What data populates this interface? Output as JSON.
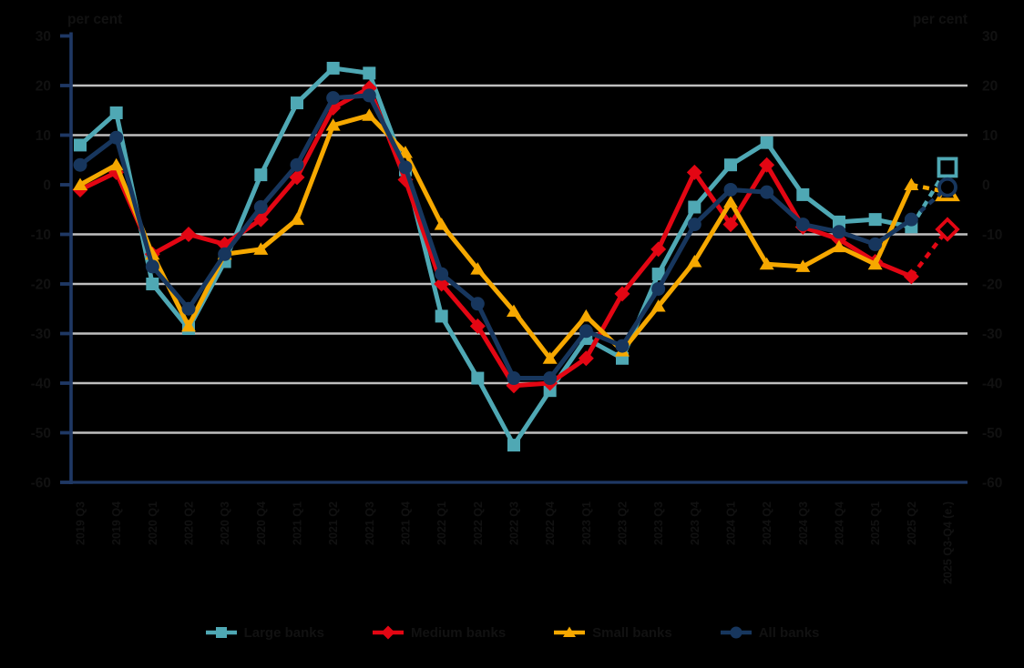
{
  "page": {
    "background": "#000000",
    "text_color": "#111111"
  },
  "chart_data": {
    "type": "line",
    "title": "",
    "axis_title_left": "per cent",
    "axis_title_right": "per cent",
    "ylim": [
      -60,
      30
    ],
    "yticks": [
      30,
      20,
      10,
      0,
      -10,
      -20,
      -30,
      -40,
      -50,
      -60
    ],
    "gridlines_at": [
      20,
      10,
      -10,
      -20,
      -30,
      -40,
      -50
    ],
    "grid_on": true,
    "grid_color": "#BFBFBF",
    "axis_color": "#1F3864",
    "legend_position": "bottom-center",
    "last_category_estimated": true,
    "categories": [
      "2019 Q3",
      "2019 Q4",
      "2020 Q1",
      "2020 Q2",
      "2020 Q3",
      "2020 Q4",
      "2021 Q1",
      "2021 Q2",
      "2021 Q3",
      "2021 Q4",
      "2022 Q1",
      "2022 Q2",
      "2022 Q3",
      "2022 Q4",
      "2023 Q1",
      "2023 Q2",
      "2023 Q3",
      "2023 Q4",
      "2024 Q1",
      "2024 Q2",
      "2024 Q3",
      "2024 Q4",
      "2025 Q1",
      "2025 Q2",
      "2025 Q3-Q4 (e.)"
    ],
    "series": [
      {
        "name": "Large banks",
        "marker": "square",
        "color": "#4FA8B4",
        "values": [
          8,
          14.5,
          -20,
          -29,
          -15.5,
          2,
          16.5,
          23.5,
          22.5,
          3,
          -26.5,
          -39,
          -52.5,
          -41.5,
          -31,
          -35,
          -18,
          -4.5,
          4,
          8.5,
          -2,
          -7.5,
          -7,
          -8.5,
          3.5
        ]
      },
      {
        "name": "Medium banks",
        "marker": "diamond",
        "color": "#E30613",
        "values": [
          -1,
          2.5,
          -14,
          -10,
          -12,
          -7,
          1.5,
          15.5,
          19.5,
          1,
          -20,
          -28.5,
          -40.5,
          -40,
          -35,
          -22,
          -13,
          2.5,
          -8,
          4,
          -8.5,
          -11,
          -15.5,
          -18.5,
          -9
        ]
      },
      {
        "name": "Small banks",
        "marker": "triangle",
        "color": "#F6A800",
        "values": [
          0,
          4,
          -14,
          -28.5,
          -14,
          -13,
          -7,
          12,
          14,
          6.5,
          -8,
          -17,
          -25.5,
          -35,
          -26.5,
          -33.5,
          -24.5,
          -15.5,
          -3.5,
          -16,
          -16.5,
          -12.5,
          -16,
          0,
          -1.5
        ]
      },
      {
        "name": "All banks",
        "marker": "circle",
        "color": "#17365D",
        "values": [
          4,
          9.5,
          -16.5,
          -25,
          -14,
          -4.5,
          4,
          17.5,
          18,
          3.5,
          -18,
          -24,
          -39,
          -39,
          -29.5,
          -32.5,
          -21,
          -8,
          -1,
          -1.5,
          -8,
          -9.5,
          -12,
          -7,
          -0.5
        ]
      }
    ]
  }
}
